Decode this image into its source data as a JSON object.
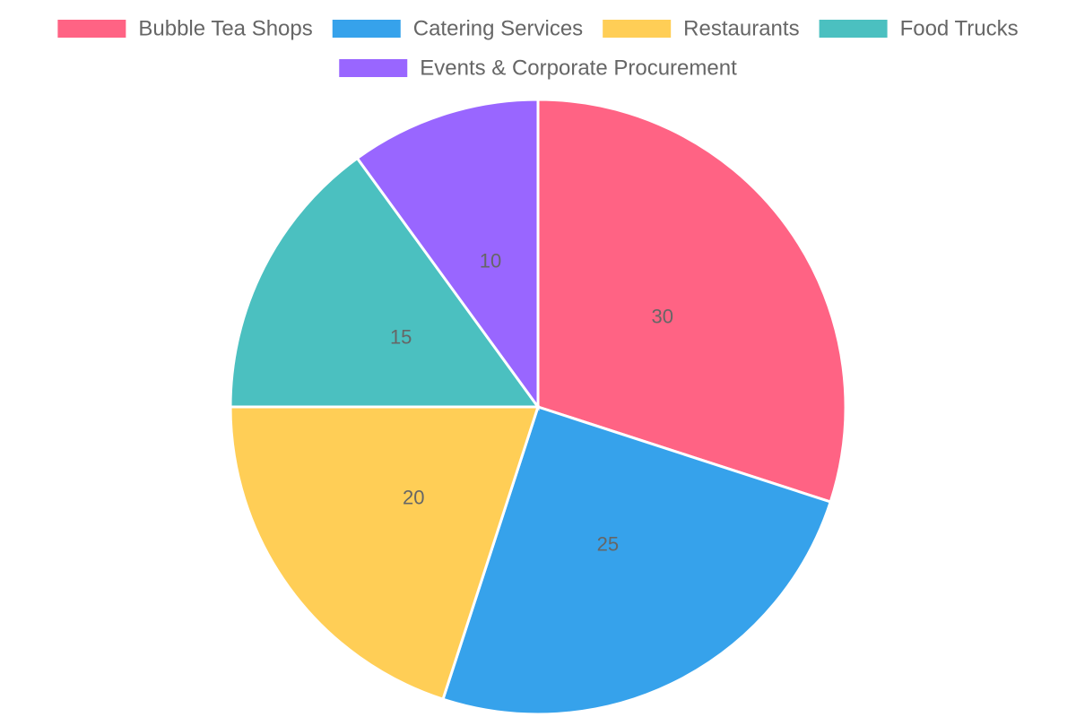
{
  "chart_data": {
    "type": "pie",
    "title": "",
    "legend_position": "top",
    "categories": [
      "Bubble Tea Shops",
      "Catering Services",
      "Restaurants",
      "Food Trucks",
      "Events & Corporate Procurement"
    ],
    "values": [
      30,
      25,
      20,
      15,
      10
    ],
    "colors": [
      "#ff6384",
      "#36a2eb",
      "#ffce56",
      "#4bc0c0",
      "#9966ff"
    ],
    "data_labels": [
      "30",
      "25",
      "20",
      "15",
      "10"
    ]
  }
}
